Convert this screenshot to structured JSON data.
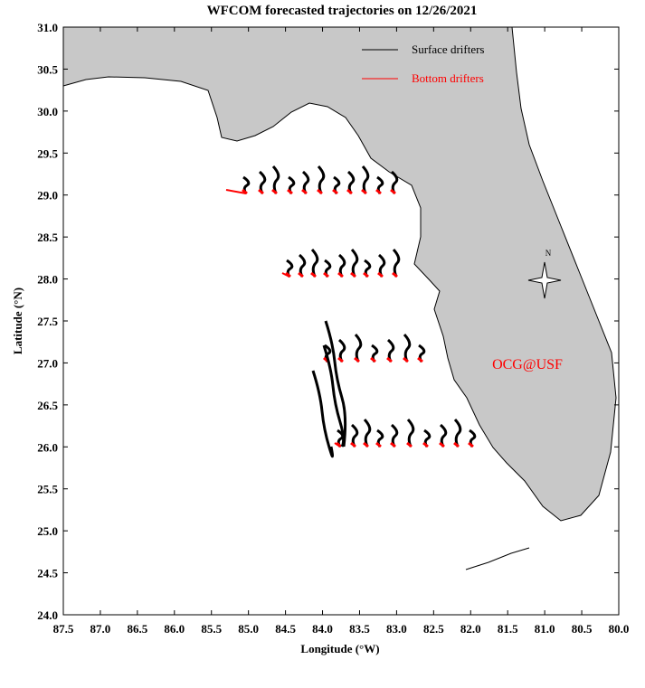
{
  "chart_data": {
    "type": "map",
    "title": "WFCOM forecasted trajectories on 12/26/2021",
    "x_label": "Longitude (°W)",
    "y_label": "Latitude (°N)",
    "xlim": [
      87.5,
      80.0
    ],
    "ylim": [
      24.0,
      31.0
    ],
    "xticks": [
      {
        "value": 87.5,
        "label": "87.5"
      },
      {
        "value": 87,
        "label": "87.0"
      },
      {
        "value": 86.5,
        "label": "86.5"
      },
      {
        "value": 86,
        "label": "86.0"
      },
      {
        "value": 85.5,
        "label": "85.5"
      },
      {
        "value": 85,
        "label": "85.0"
      },
      {
        "value": 84.5,
        "label": "84.5"
      },
      {
        "value": 84,
        "label": "84.0"
      },
      {
        "value": 83.5,
        "label": "83.5"
      },
      {
        "value": 83,
        "label": "83.0"
      },
      {
        "value": 82.5,
        "label": "82.5"
      },
      {
        "value": 82,
        "label": "82.0"
      },
      {
        "value": 81.5,
        "label": "81.5"
      },
      {
        "value": 81,
        "label": "81.0"
      },
      {
        "value": 80.5,
        "label": "80.5"
      },
      {
        "value": 80,
        "label": "80.0"
      }
    ],
    "yticks": [
      {
        "value": 24,
        "label": "24.0"
      },
      {
        "value": 24.5,
        "label": "24.5"
      },
      {
        "value": 25,
        "label": "25.0"
      },
      {
        "value": 25.5,
        "label": "25.5"
      },
      {
        "value": 26,
        "label": "26.0"
      },
      {
        "value": 26.5,
        "label": "26.5"
      },
      {
        "value": 27,
        "label": "27.0"
      },
      {
        "value": 27.5,
        "label": "27.5"
      },
      {
        "value": 28,
        "label": "28.0"
      },
      {
        "value": 28.5,
        "label": "28.5"
      },
      {
        "value": 29,
        "label": "29.0"
      },
      {
        "value": 29.5,
        "label": "29.5"
      },
      {
        "value": 30,
        "label": "30.0"
      },
      {
        "value": 30.5,
        "label": "30.5"
      },
      {
        "value": 31,
        "label": "31.0"
      }
    ],
    "series": [
      {
        "name": "Surface drifters",
        "color": "#000000"
      },
      {
        "name": "Bottom drifters",
        "color": "#ff0000"
      }
    ],
    "annotations": [
      "OCG@USF",
      "N"
    ]
  }
}
